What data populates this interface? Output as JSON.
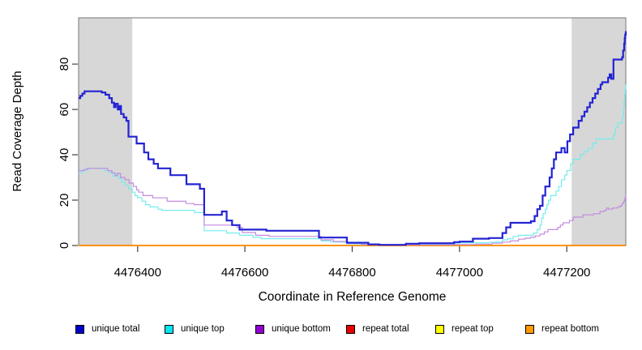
{
  "chart_data": {
    "type": "line",
    "line_style": "step-after",
    "title": "",
    "xlabel": "Coordinate in Reference Genome",
    "ylabel": "Read Coverage Depth",
    "xlim": [
      4476290,
      4477310
    ],
    "ylim": [
      0,
      100.4
    ],
    "x_ticks": [
      4476400,
      4476600,
      4476800,
      4477000,
      4477200
    ],
    "y_ticks": [
      0,
      20,
      40,
      60,
      80
    ],
    "grid": false,
    "box_color": "#8a8a8a",
    "tick_color": "#404040",
    "text_color": "#000000",
    "highlight_regions": [
      {
        "name": "left-flank",
        "x0": 4476290,
        "x1": 4476390,
        "color": "#D7D7D7"
      },
      {
        "name": "right-flank",
        "x0": 4477209,
        "x1": 4477310,
        "color": "#D7D7D7"
      }
    ],
    "legend": {
      "position": "bottom",
      "entries": [
        {
          "label": "unique total",
          "swatch_color": "#0000CC"
        },
        {
          "label": "unique top",
          "swatch_color": "#00E5EE"
        },
        {
          "label": "unique bottom",
          "swatch_color": "#9400D3"
        },
        {
          "label": "repeat total",
          "swatch_color": "#E60000"
        },
        {
          "label": "repeat top",
          "swatch_color": "#FFFF00"
        },
        {
          "label": "repeat bottom",
          "swatch_color": "#FF9900"
        }
      ]
    },
    "series": [
      {
        "name": "repeat total",
        "color": "#E00000",
        "width": 1.2,
        "points": [
          [
            4476290,
            0
          ],
          [
            4477310,
            0
          ]
        ]
      },
      {
        "name": "repeat top",
        "color": "#FFFF00",
        "width": 1.2,
        "points": [
          [
            4476290,
            0
          ],
          [
            4477310,
            0
          ]
        ]
      },
      {
        "name": "repeat bottom",
        "color": "#FF8C00",
        "width": 1.7,
        "points": [
          [
            4476290,
            0
          ],
          [
            4477310,
            0
          ]
        ]
      },
      {
        "name": "unique top",
        "color": "#76ECEC",
        "width": 1.2,
        "points": [
          [
            4476290,
            32
          ],
          [
            4476297,
            33
          ],
          [
            4476304,
            34
          ],
          [
            4476338,
            33
          ],
          [
            4476347,
            32
          ],
          [
            4476354,
            30.5
          ],
          [
            4476358,
            31.5
          ],
          [
            4476364,
            29.5
          ],
          [
            4476370,
            28
          ],
          [
            4476377,
            26.5
          ],
          [
            4476383,
            25
          ],
          [
            4476390,
            23.5
          ],
          [
            4476395,
            22
          ],
          [
            4476400,
            21
          ],
          [
            4476408,
            19.5
          ],
          [
            4476415,
            18
          ],
          [
            4476423,
            17
          ],
          [
            4476438,
            16
          ],
          [
            4476445,
            15.5
          ],
          [
            4476506,
            14.5
          ],
          [
            4476524,
            6.5
          ],
          [
            4476566,
            5.5
          ],
          [
            4476590,
            4.5
          ],
          [
            4476615,
            3.6
          ],
          [
            4476630,
            3
          ],
          [
            4476742,
            2
          ],
          [
            4476760,
            1.5
          ],
          [
            4476790,
            0.8
          ],
          [
            4476815,
            0.4
          ],
          [
            4476845,
            0.3
          ],
          [
            4476905,
            0.5
          ],
          [
            4476990,
            1
          ],
          [
            4477000,
            1.2
          ],
          [
            4477055,
            1.5
          ],
          [
            4477080,
            2.5
          ],
          [
            4477090,
            3
          ],
          [
            4477100,
            4
          ],
          [
            4477110,
            4.5
          ],
          [
            4477138,
            5.5
          ],
          [
            4477145,
            7
          ],
          [
            4477150,
            9
          ],
          [
            4477153,
            12
          ],
          [
            4477156,
            14
          ],
          [
            4477160,
            16
          ],
          [
            4477163,
            18
          ],
          [
            4477166,
            20
          ],
          [
            4477170,
            22
          ],
          [
            4477180,
            24
          ],
          [
            4477185,
            26
          ],
          [
            4477190,
            29
          ],
          [
            4477196,
            31
          ],
          [
            4477200,
            33
          ],
          [
            4477207,
            36
          ],
          [
            4477212,
            38
          ],
          [
            4477225,
            40
          ],
          [
            4477232,
            41.5
          ],
          [
            4477240,
            43
          ],
          [
            4477248,
            45
          ],
          [
            4477255,
            47
          ],
          [
            4477287,
            49
          ],
          [
            4477291,
            52
          ],
          [
            4477295,
            54
          ],
          [
            4477303,
            56
          ],
          [
            4477305,
            58
          ],
          [
            4477306,
            61
          ],
          [
            4477307,
            64
          ],
          [
            4477308,
            67
          ],
          [
            4477309,
            69
          ],
          [
            4477310,
            71
          ]
        ]
      },
      {
        "name": "unique bottom",
        "color": "#C38BDF",
        "width": 1.2,
        "points": [
          [
            4476290,
            33
          ],
          [
            4476300,
            33.5
          ],
          [
            4476307,
            34
          ],
          [
            4476344,
            33
          ],
          [
            4476352,
            32
          ],
          [
            4476358,
            30.8
          ],
          [
            4476362,
            31.8
          ],
          [
            4476368,
            30
          ],
          [
            4476376,
            29
          ],
          [
            4476384,
            27.5
          ],
          [
            4476392,
            26
          ],
          [
            4476398,
            24.5
          ],
          [
            4476402,
            23.5
          ],
          [
            4476410,
            22
          ],
          [
            4476428,
            21
          ],
          [
            4476455,
            19.5
          ],
          [
            4476490,
            18.5
          ],
          [
            4476505,
            18
          ],
          [
            4476524,
            9
          ],
          [
            4476585,
            8
          ],
          [
            4476595,
            5.7
          ],
          [
            4476620,
            4.5
          ],
          [
            4476645,
            4
          ],
          [
            4476742,
            2.5
          ],
          [
            4476765,
            1.8
          ],
          [
            4476792,
            1
          ],
          [
            4476818,
            0.5
          ],
          [
            4476845,
            0.3
          ],
          [
            4476990,
            0.4
          ],
          [
            4477030,
            0.6
          ],
          [
            4477060,
            1
          ],
          [
            4477080,
            1.5
          ],
          [
            4477095,
            2
          ],
          [
            4477110,
            2.8
          ],
          [
            4477122,
            3.2
          ],
          [
            4477132,
            3.6
          ],
          [
            4477141,
            4.2
          ],
          [
            4477150,
            5
          ],
          [
            4477158,
            6
          ],
          [
            4477165,
            7
          ],
          [
            4477183,
            8
          ],
          [
            4477188,
            9
          ],
          [
            4477193,
            10
          ],
          [
            4477205,
            11
          ],
          [
            4477212,
            12.5
          ],
          [
            4477230,
            13.5
          ],
          [
            4477250,
            14
          ],
          [
            4477262,
            15
          ],
          [
            4477270,
            15.5
          ],
          [
            4477274,
            16.5
          ],
          [
            4477278,
            16
          ],
          [
            4477285,
            16.5
          ],
          [
            4477295,
            17
          ],
          [
            4477300,
            17.5
          ],
          [
            4477303,
            18.5
          ],
          [
            4477306,
            19.5
          ],
          [
            4477308,
            20.5
          ],
          [
            4477309,
            21.5
          ],
          [
            4477310,
            22.5
          ]
        ]
      },
      {
        "name": "unique total",
        "color": "#2323D3",
        "width": 2.2,
        "points": [
          [
            4476290,
            65
          ],
          [
            4476293,
            66
          ],
          [
            4476297,
            67
          ],
          [
            4476301,
            68
          ],
          [
            4476333,
            67.5
          ],
          [
            4476340,
            66.5
          ],
          [
            4476347,
            65
          ],
          [
            4476352,
            63
          ],
          [
            4476356,
            61
          ],
          [
            4476359,
            62.5
          ],
          [
            4476363,
            60
          ],
          [
            4476366,
            61.5
          ],
          [
            4476369,
            58
          ],
          [
            4476374,
            56.5
          ],
          [
            4476379,
            55
          ],
          [
            4476383,
            48
          ],
          [
            4476398,
            45
          ],
          [
            4476412,
            41
          ],
          [
            4476420,
            38
          ],
          [
            4476430,
            36
          ],
          [
            4476438,
            34
          ],
          [
            4476461,
            31
          ],
          [
            4476491,
            27
          ],
          [
            4476516,
            25
          ],
          [
            4476524,
            13.5
          ],
          [
            4476557,
            15
          ],
          [
            4476566,
            11
          ],
          [
            4476576,
            9
          ],
          [
            4476590,
            7
          ],
          [
            4476640,
            6.5
          ],
          [
            4476738,
            3.5
          ],
          [
            4476790,
            1.2
          ],
          [
            4476830,
            0.5
          ],
          [
            4476850,
            0.3
          ],
          [
            4476900,
            0.8
          ],
          [
            4476925,
            1
          ],
          [
            4476990,
            1.5
          ],
          [
            4477000,
            1.7
          ],
          [
            4477025,
            3
          ],
          [
            4477055,
            3.3
          ],
          [
            4477080,
            5.5
          ],
          [
            4477087,
            8
          ],
          [
            4477095,
            10
          ],
          [
            4477133,
            10.7
          ],
          [
            4477140,
            13
          ],
          [
            4477145,
            16
          ],
          [
            4477150,
            17.5
          ],
          [
            4477155,
            22
          ],
          [
            4477160,
            26
          ],
          [
            4477168,
            30
          ],
          [
            4477172,
            34
          ],
          [
            4477176,
            38
          ],
          [
            4477180,
            41
          ],
          [
            4477190,
            43
          ],
          [
            4477196,
            41
          ],
          [
            4477201,
            46
          ],
          [
            4477206,
            49
          ],
          [
            4477212,
            52
          ],
          [
            4477222,
            55
          ],
          [
            4477228,
            57
          ],
          [
            4477233,
            59
          ],
          [
            4477238,
            61
          ],
          [
            4477243,
            63
          ],
          [
            4477248,
            65
          ],
          [
            4477253,
            67
          ],
          [
            4477258,
            69
          ],
          [
            4477263,
            71
          ],
          [
            4477266,
            72
          ],
          [
            4477277,
            74
          ],
          [
            4477280,
            75.5
          ],
          [
            4477283,
            73.5
          ],
          [
            4477287,
            82
          ],
          [
            4477303,
            83
          ],
          [
            4477305,
            86
          ],
          [
            4477307,
            89
          ],
          [
            4477308,
            91.5
          ],
          [
            4477309,
            93
          ],
          [
            4477310,
            94.5
          ]
        ]
      }
    ]
  }
}
